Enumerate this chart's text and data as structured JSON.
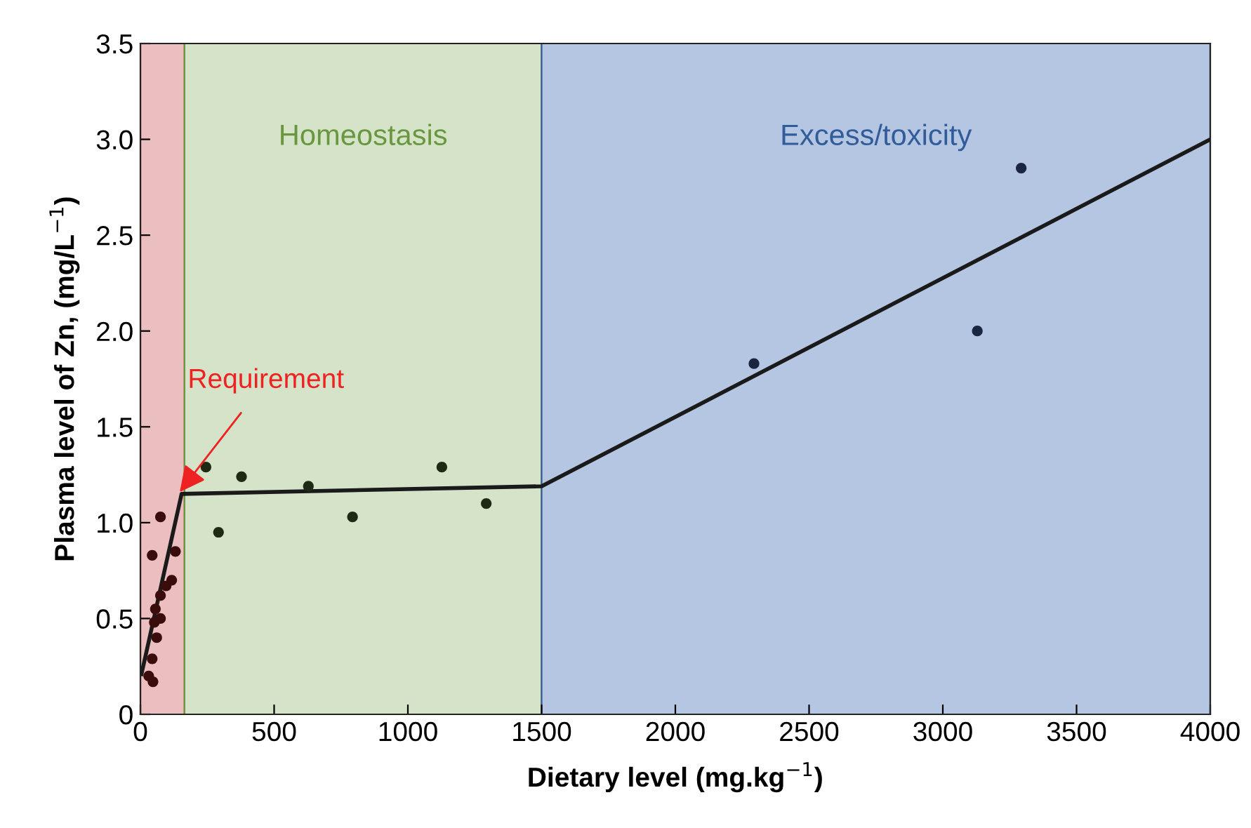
{
  "chart_data": {
    "type": "scatter",
    "xlabel": "Dietary level (mg.kg$^{−1}$)",
    "ylabel": "Plasma level of Zn, (mg/L$^{−1}$)",
    "xlim": [
      0,
      4000
    ],
    "ylim": [
      0,
      3.5
    ],
    "xticks": [
      0,
      500,
      1000,
      1500,
      2000,
      2500,
      3000,
      3500,
      4000
    ],
    "yticks": [
      0,
      {
        "value": 0.5,
        "label": "0.5"
      },
      {
        "value": 1,
        "label": "1.0"
      },
      {
        "value": 1.5,
        "label": "1.5"
      },
      {
        "value": 2,
        "label": "2.0"
      },
      {
        "value": 2.5,
        "label": "2.5"
      },
      {
        "value": 3,
        "label": "3.0"
      },
      {
        "value": 3.5,
        "label": "3.5"
      }
    ],
    "grid": false,
    "legend": false,
    "marker": "circle",
    "bands": [
      {
        "axis": "x",
        "from": 0,
        "to": 165,
        "label": null,
        "color": "#ebbfc0"
      },
      {
        "axis": "x",
        "from": 165,
        "to": 1500,
        "label": "Homeostasis",
        "color": "#d5e4c8"
      },
      {
        "axis": "x",
        "from": 1500,
        "to": 4000,
        "label": "Excess/toxicity",
        "color": "#b4c6e1"
      }
    ],
    "series": [
      {
        "type": "line",
        "color": "#1a1a1a",
        "x": [
          4,
          154,
          1500,
          4000
        ],
        "values": [
          0.21,
          1.15,
          1.19,
          3.0
        ],
        "marker": "none"
      },
      {
        "x": [
          31,
          47,
          44,
          61,
          52,
          75,
          56,
          75,
          96,
          117,
          131,
          44,
          75,
          292,
          245,
          378,
          628,
          793,
          1127,
          1293,
          2294,
          3129,
          3293
        ],
        "values": [
          0.2,
          0.17,
          0.29,
          0.4,
          0.48,
          0.5,
          0.55,
          0.62,
          0.67,
          0.7,
          0.85,
          0.83,
          1.03,
          0.95,
          1.29,
          1.24,
          1.19,
          1.03,
          1.29,
          1.1,
          1.83,
          2.0,
          2.85
        ],
        "colors": [
          "#3a0c0c",
          "#3a0c0c",
          "#3a0c0c",
          "#3a0c0c",
          "#3a0c0c",
          "#3a0c0c",
          "#3a0c0c",
          "#3a0c0c",
          "#3a0c0c",
          "#3a0c0c",
          "#3a0c0c",
          "#3a0c0c",
          "#3a0c0c",
          "#1e2a14",
          "#1e2a14",
          "#1e2a14",
          "#1e2a14",
          "#1e2a14",
          "#1e2a14",
          "#1e2a14",
          "#1a2640",
          "#1a2640",
          "#1a2640"
        ]
      }
    ],
    "annotations": [
      {
        "text": "Requirement",
        "x": 147,
        "y": 1.16
      }
    ]
  }
}
